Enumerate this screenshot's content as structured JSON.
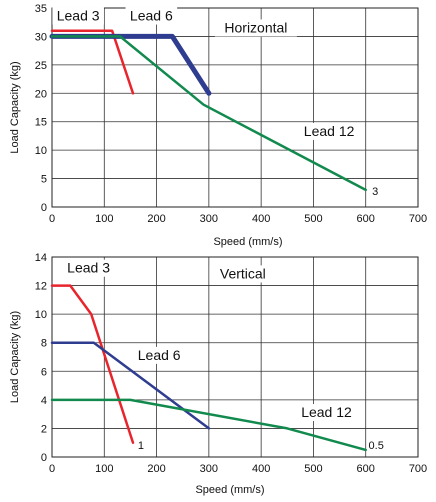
{
  "chart_data": [
    {
      "type": "line",
      "title": "",
      "xlabel": "Speed (mm/s)",
      "ylabel": "Load Capacity (kg)",
      "xlim": [
        0,
        700
      ],
      "ylim": [
        0,
        35
      ],
      "xticks": [
        0,
        100,
        200,
        300,
        400,
        500,
        600,
        700
      ],
      "yticks": [
        0,
        5,
        10,
        15,
        20,
        25,
        30,
        35
      ],
      "grid": true,
      "series": [
        {
          "name": "Lead 3",
          "color": "#e8242d",
          "x": [
            0,
            115,
            155
          ],
          "y": [
            31,
            31,
            20
          ]
        },
        {
          "name": "Lead 6",
          "color": "#2e3d8f",
          "x": [
            0,
            230,
            300
          ],
          "y": [
            30,
            30,
            20
          ]
        },
        {
          "name": "Lead 12",
          "color": "#128a4e",
          "x": [
            0,
            130,
            290,
            600
          ],
          "y": [
            30,
            30,
            18,
            3
          ]
        }
      ],
      "annotations": [
        {
          "text": "Lead 3",
          "x": 50,
          "y": 32.8
        },
        {
          "text": "Lead 6",
          "x": 190,
          "y": 32.8
        },
        {
          "text": "Horizontal",
          "x": 390,
          "y": 30.7
        },
        {
          "text": "Lead 12",
          "x": 530,
          "y": 12.5
        },
        {
          "text": "3",
          "x": 618,
          "y": 2.1
        }
      ]
    },
    {
      "type": "line",
      "title": "",
      "xlabel": "Speed (mm/s)",
      "ylabel": "Load Capacity (kg)",
      "xlim": [
        0,
        700
      ],
      "ylim": [
        0,
        14
      ],
      "xticks": [
        0,
        100,
        200,
        300,
        400,
        500,
        600,
        700
      ],
      "yticks": [
        0,
        2,
        4,
        6,
        8,
        10,
        12,
        14
      ],
      "grid": true,
      "series": [
        {
          "name": "Lead 3",
          "color": "#e8242d",
          "x": [
            0,
            35,
            75,
            155
          ],
          "y": [
            12,
            12,
            10,
            1
          ]
        },
        {
          "name": "Lead 6",
          "color": "#2e3d8f",
          "x": [
            0,
            80,
            300
          ],
          "y": [
            8,
            8,
            2
          ]
        },
        {
          "name": "Lead 12",
          "color": "#128a4e",
          "x": [
            0,
            150,
            450,
            600
          ],
          "y": [
            4,
            4,
            2,
            0.5
          ]
        }
      ],
      "annotations": [
        {
          "text": "Lead 3",
          "x": 70,
          "y": 12.9
        },
        {
          "text": "Vertical",
          "x": 365,
          "y": 12.5
        },
        {
          "text": "Lead 6",
          "x": 205,
          "y": 6.8
        },
        {
          "text": "Lead 12",
          "x": 525,
          "y": 2.8
        },
        {
          "text": "1",
          "x": 170,
          "y": 0.55
        },
        {
          "text": "0.5",
          "x": 620,
          "y": 0.55
        }
      ]
    }
  ]
}
